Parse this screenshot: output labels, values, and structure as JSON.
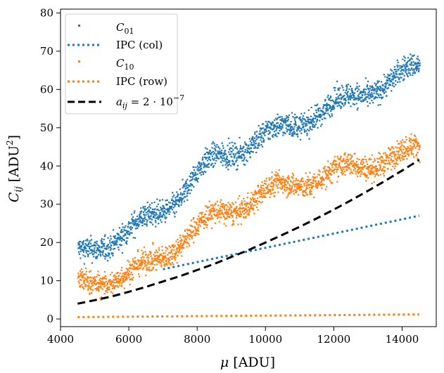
{
  "chart_data": {
    "type": "scatter",
    "xlabel": "μ [ADU]",
    "ylabel": "C_ij [ADU²]",
    "xlim": [
      4000,
      15000
    ],
    "ylim": [
      -2,
      81
    ],
    "xticks": [
      4000,
      6000,
      8000,
      10000,
      12000,
      14000
    ],
    "yticks": [
      0,
      10,
      20,
      30,
      40,
      50,
      60,
      70,
      80
    ],
    "grid": false,
    "legend_position": "top-left",
    "series": [
      {
        "name": "C01",
        "kind": "scatter",
        "color": "#1f77b4",
        "x": [
          4500,
          5000,
          5500,
          6000,
          6500,
          7000,
          7500,
          8000,
          8500,
          9000,
          9500,
          10000,
          10500,
          11000,
          11500,
          12000,
          12500,
          13000,
          13500,
          14000,
          14500
        ],
        "y": [
          17,
          19,
          21,
          23,
          26,
          29,
          33,
          38,
          42,
          44,
          46,
          48,
          50,
          52,
          54,
          56,
          58,
          60,
          62,
          64,
          66
        ],
        "spread": 3
      },
      {
        "name": "IPC (col)",
        "kind": "dotted-line",
        "color": "#1f77b4",
        "x": [
          7000,
          14500
        ],
        "y": [
          13,
          27
        ]
      },
      {
        "name": "C10",
        "kind": "scatter",
        "color": "#ff7f0e",
        "x": [
          4500,
          5000,
          5500,
          6000,
          6500,
          7000,
          7500,
          8000,
          8500,
          9000,
          9500,
          10000,
          10500,
          11000,
          11500,
          12000,
          12500,
          13000,
          13500,
          14000,
          14500
        ],
        "y": [
          9,
          10,
          11,
          12,
          14,
          17,
          21,
          24,
          27,
          29,
          31,
          33,
          35,
          36,
          37,
          38,
          40,
          41,
          42,
          43,
          45
        ],
        "spread": 3
      },
      {
        "name": "IPC (row)",
        "kind": "dotted-line",
        "color": "#ff7f0e",
        "x": [
          4500,
          14500
        ],
        "y": [
          0.5,
          1.2
        ]
      },
      {
        "name": "a_ij = 2·10^-7",
        "kind": "dashed-line",
        "color": "#000000",
        "x": [
          4500,
          5000,
          5500,
          6000,
          6500,
          7000,
          7500,
          8000,
          8500,
          9000,
          9500,
          10000,
          10500,
          11000,
          11500,
          12000,
          12500,
          13000,
          13500,
          14000,
          14500
        ],
        "y": [
          4.0,
          4.9,
          5.9,
          7.1,
          8.4,
          9.8,
          11.2,
          12.8,
          14.4,
          16.2,
          18.0,
          20.0,
          22.0,
          24.1,
          26.3,
          28.6,
          31.0,
          33.5,
          36.1,
          38.8,
          41.6
        ]
      }
    ]
  }
}
